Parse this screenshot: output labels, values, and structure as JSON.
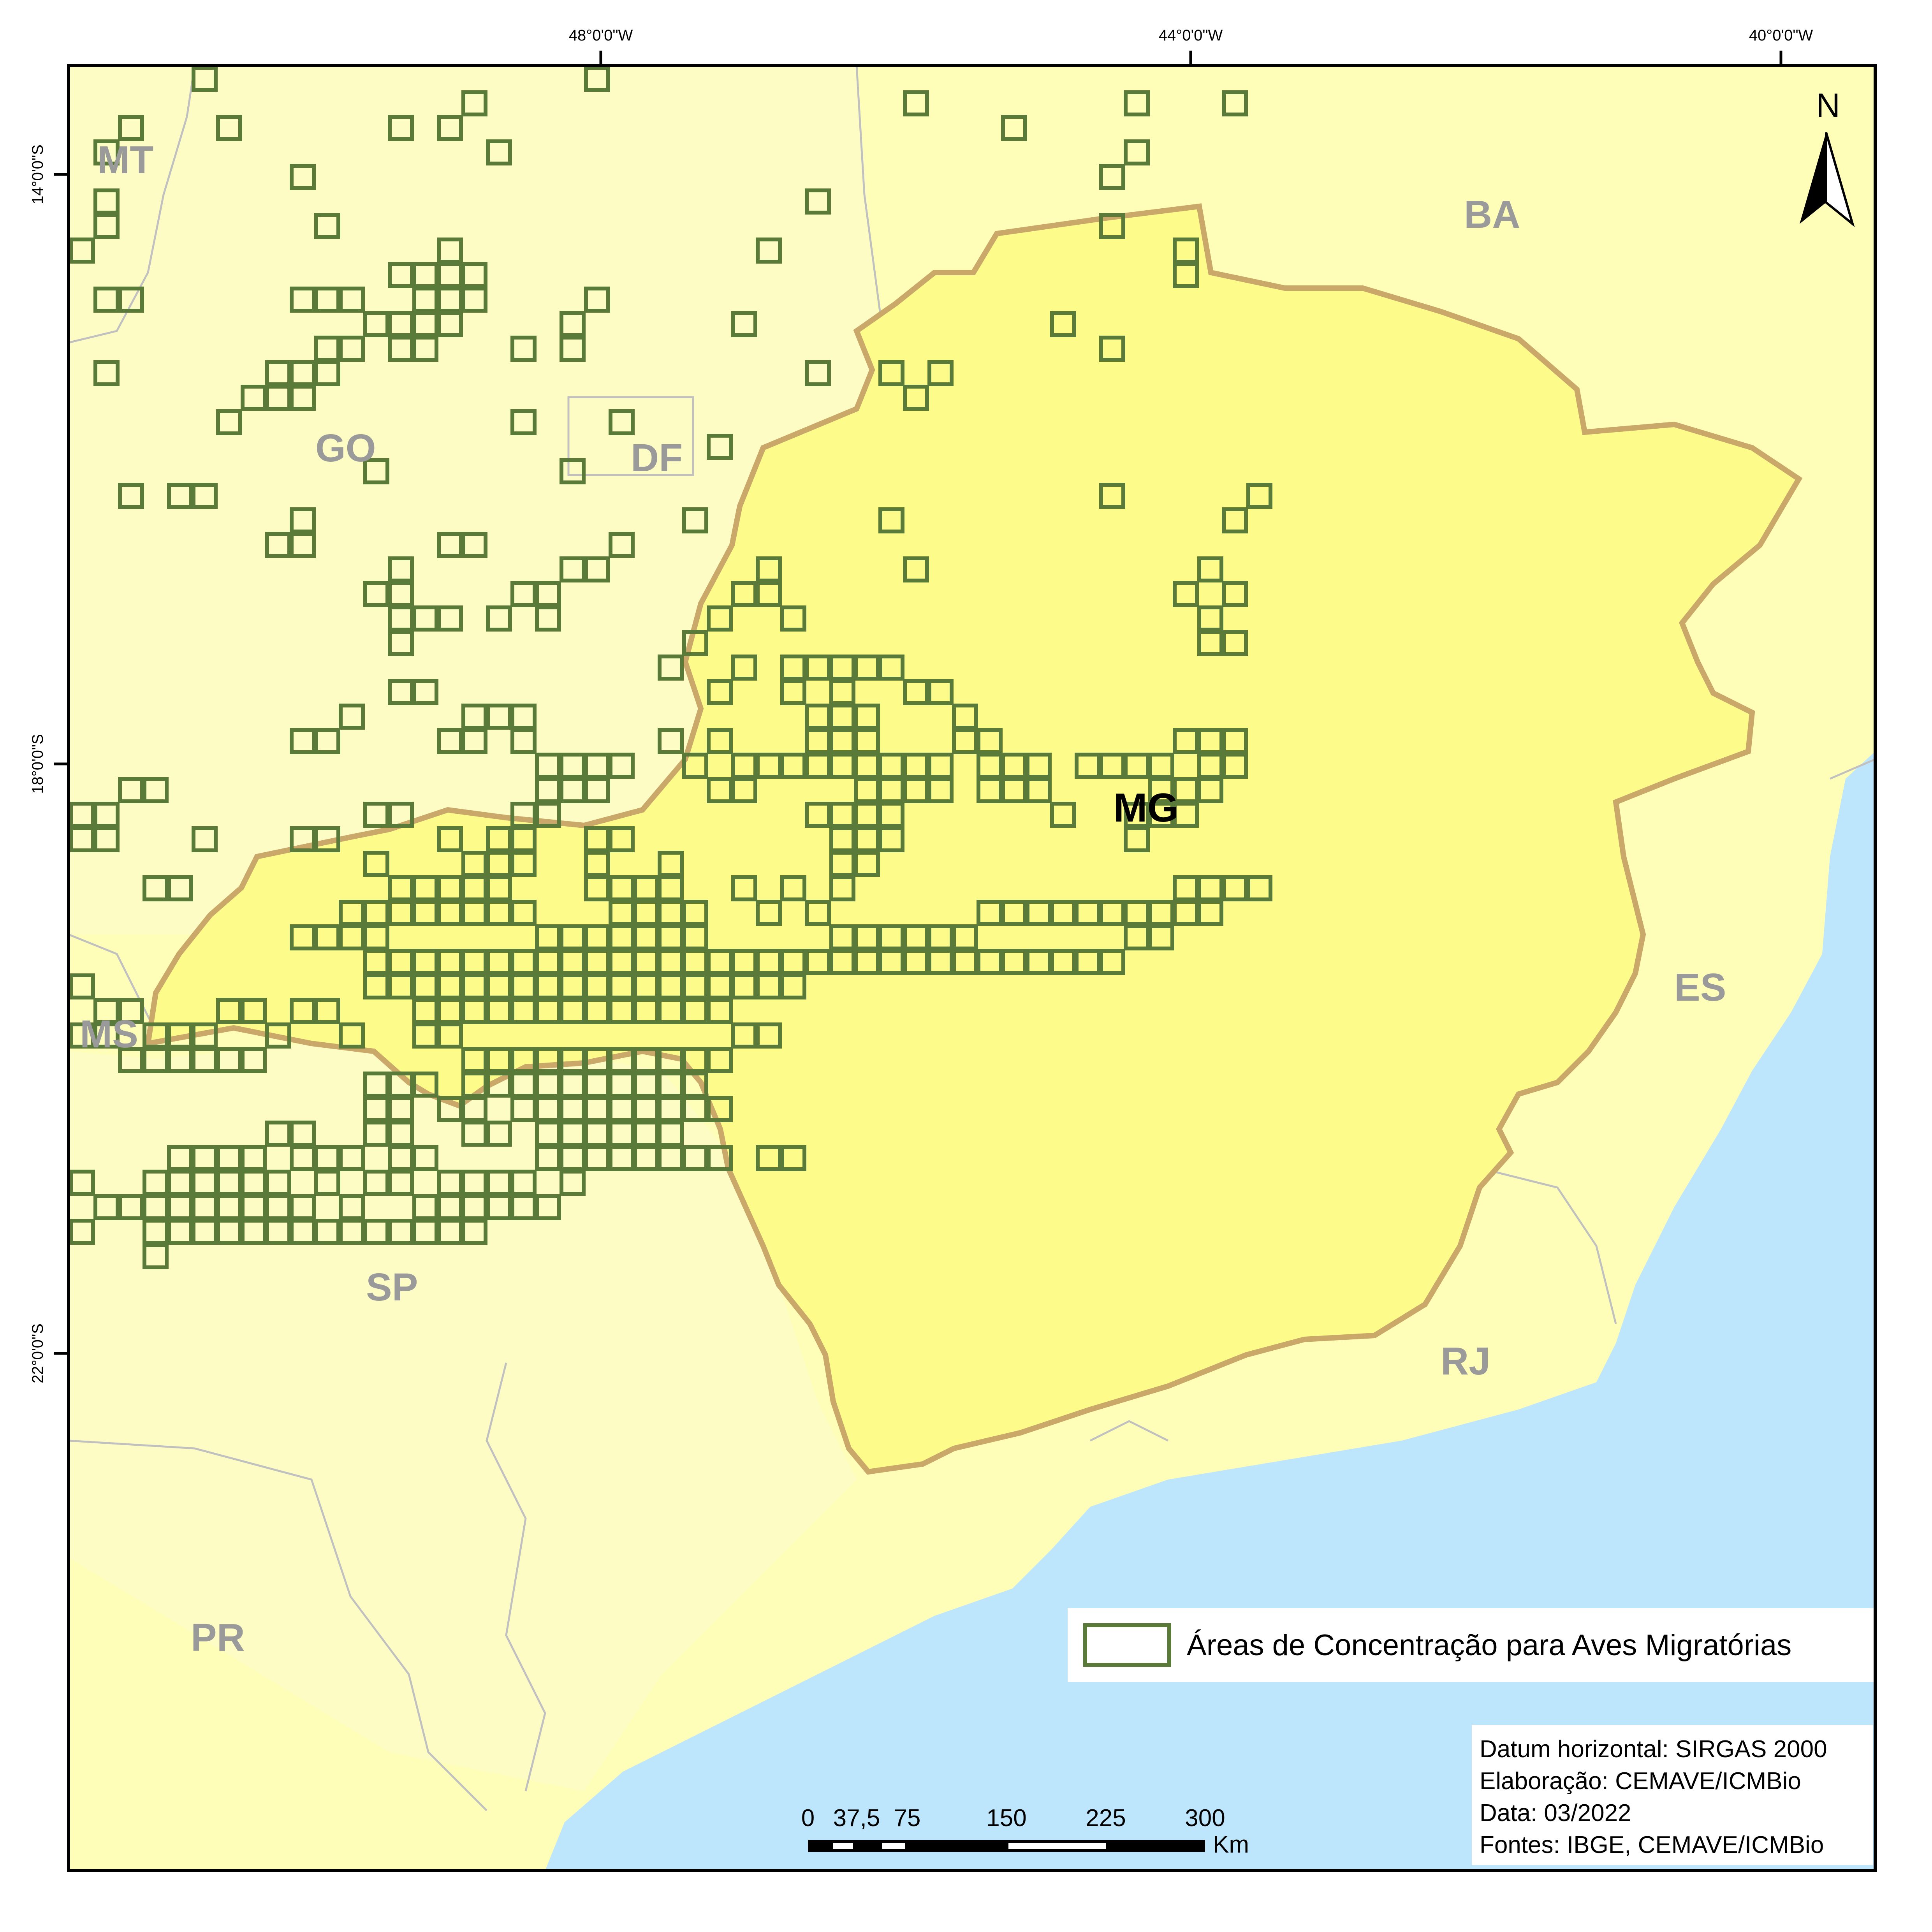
{
  "map": {
    "colors": {
      "background_states": "#fefeb8",
      "other_states_alt": "#fdfcc4",
      "mg_fill": "#fdfc8b",
      "mg_border": "#c9a86a",
      "ocean": "#bde5fb",
      "grid_cells": "#5a7a3a",
      "state_borders": "#c0c0c0",
      "frame": "#000000"
    },
    "longitude_ticks": [
      "48°0'0\"W",
      "44°0'0\"W",
      "40°0'0\"W"
    ],
    "latitude_ticks": [
      "14°0'0\"S",
      "18°0'0\"S",
      "22°0'0\"S"
    ],
    "state_labels": [
      "MT",
      "GO",
      "DF",
      "BA",
      "MS",
      "ES",
      "SP",
      "RJ",
      "PR"
    ],
    "focus_state_label": "MG",
    "north_arrow": {
      "label": "N",
      "icon": "north-arrow-icon"
    }
  },
  "legend": {
    "items": [
      {
        "label": "Áreas de Concentração para Aves Migratórias",
        "icon": "grid-cell-square"
      }
    ]
  },
  "scale_bar": {
    "ticks": [
      "0",
      "37,5",
      "75",
      "150",
      "225",
      "300"
    ],
    "unit": "Km"
  },
  "info": {
    "lines": [
      "Datum horizontal: SIRGAS 2000",
      "Elaboração: CEMAVE/ICMBio",
      "Data: 03/2022",
      "Fontes: IBGE, CEMAVE/ICMBio"
    ]
  }
}
